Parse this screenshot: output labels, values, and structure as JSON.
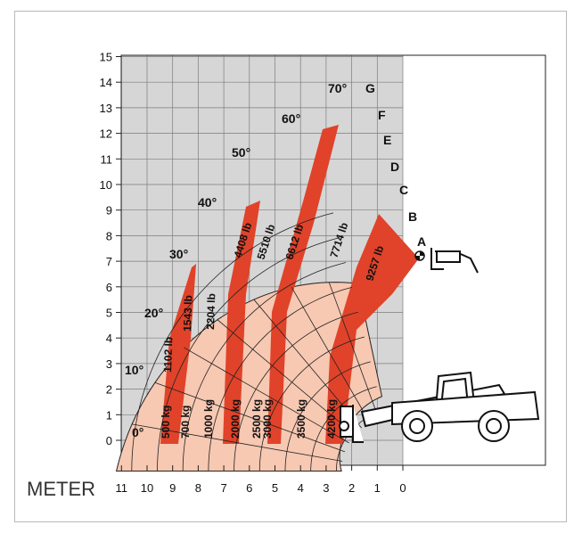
{
  "colors": {
    "grid_bg": "#d6d6d6",
    "grid_line": "#7c7c7c",
    "dark_band": "#e0432a",
    "light_band": "#f7c8b2",
    "outline": "#222222",
    "frame": "#b9b9b9"
  },
  "axes": {
    "x_title": "METER",
    "x_ticks": [
      "11",
      "10",
      "9",
      "8",
      "7",
      "6",
      "5",
      "4",
      "3",
      "2",
      "1",
      "0"
    ],
    "y_ticks": [
      "0",
      "1",
      "2",
      "3",
      "4",
      "5",
      "6",
      "7",
      "8",
      "9",
      "10",
      "11",
      "12",
      "13",
      "14",
      "15"
    ]
  },
  "angles": [
    {
      "label": "0°",
      "deg": 0
    },
    {
      "label": "10°",
      "deg": 10
    },
    {
      "label": "20°",
      "deg": 20
    },
    {
      "label": "30°",
      "deg": 30
    },
    {
      "label": "40°",
      "deg": 40
    },
    {
      "label": "50°",
      "deg": 50
    },
    {
      "label": "60°",
      "deg": 60
    },
    {
      "label": "70°",
      "deg": 70
    }
  ],
  "extensions": [
    "A",
    "B",
    "C",
    "D",
    "E",
    "F",
    "G"
  ],
  "load_zones": [
    {
      "kg": "500 kg",
      "lb": "1102 lb"
    },
    {
      "kg": "700 kg",
      "lb": "1543 lb"
    },
    {
      "kg": "1000 kg",
      "lb": "2204 lb"
    },
    {
      "kg": "2000 kg",
      "lb": "4408 lb"
    },
    {
      "kg": "2500 kg",
      "lb": "5510 lb"
    },
    {
      "kg": "3000 kg",
      "lb": "6612 lb"
    },
    {
      "kg": "3500 kg",
      "lb": "7714 lb"
    },
    {
      "kg": "4200 kg",
      "lb": "9257 lb"
    }
  ],
  "icons": {
    "pivot": "pivot-marker-icon",
    "forks": "forks-icon",
    "telehandler": "telehandler-icon"
  }
}
